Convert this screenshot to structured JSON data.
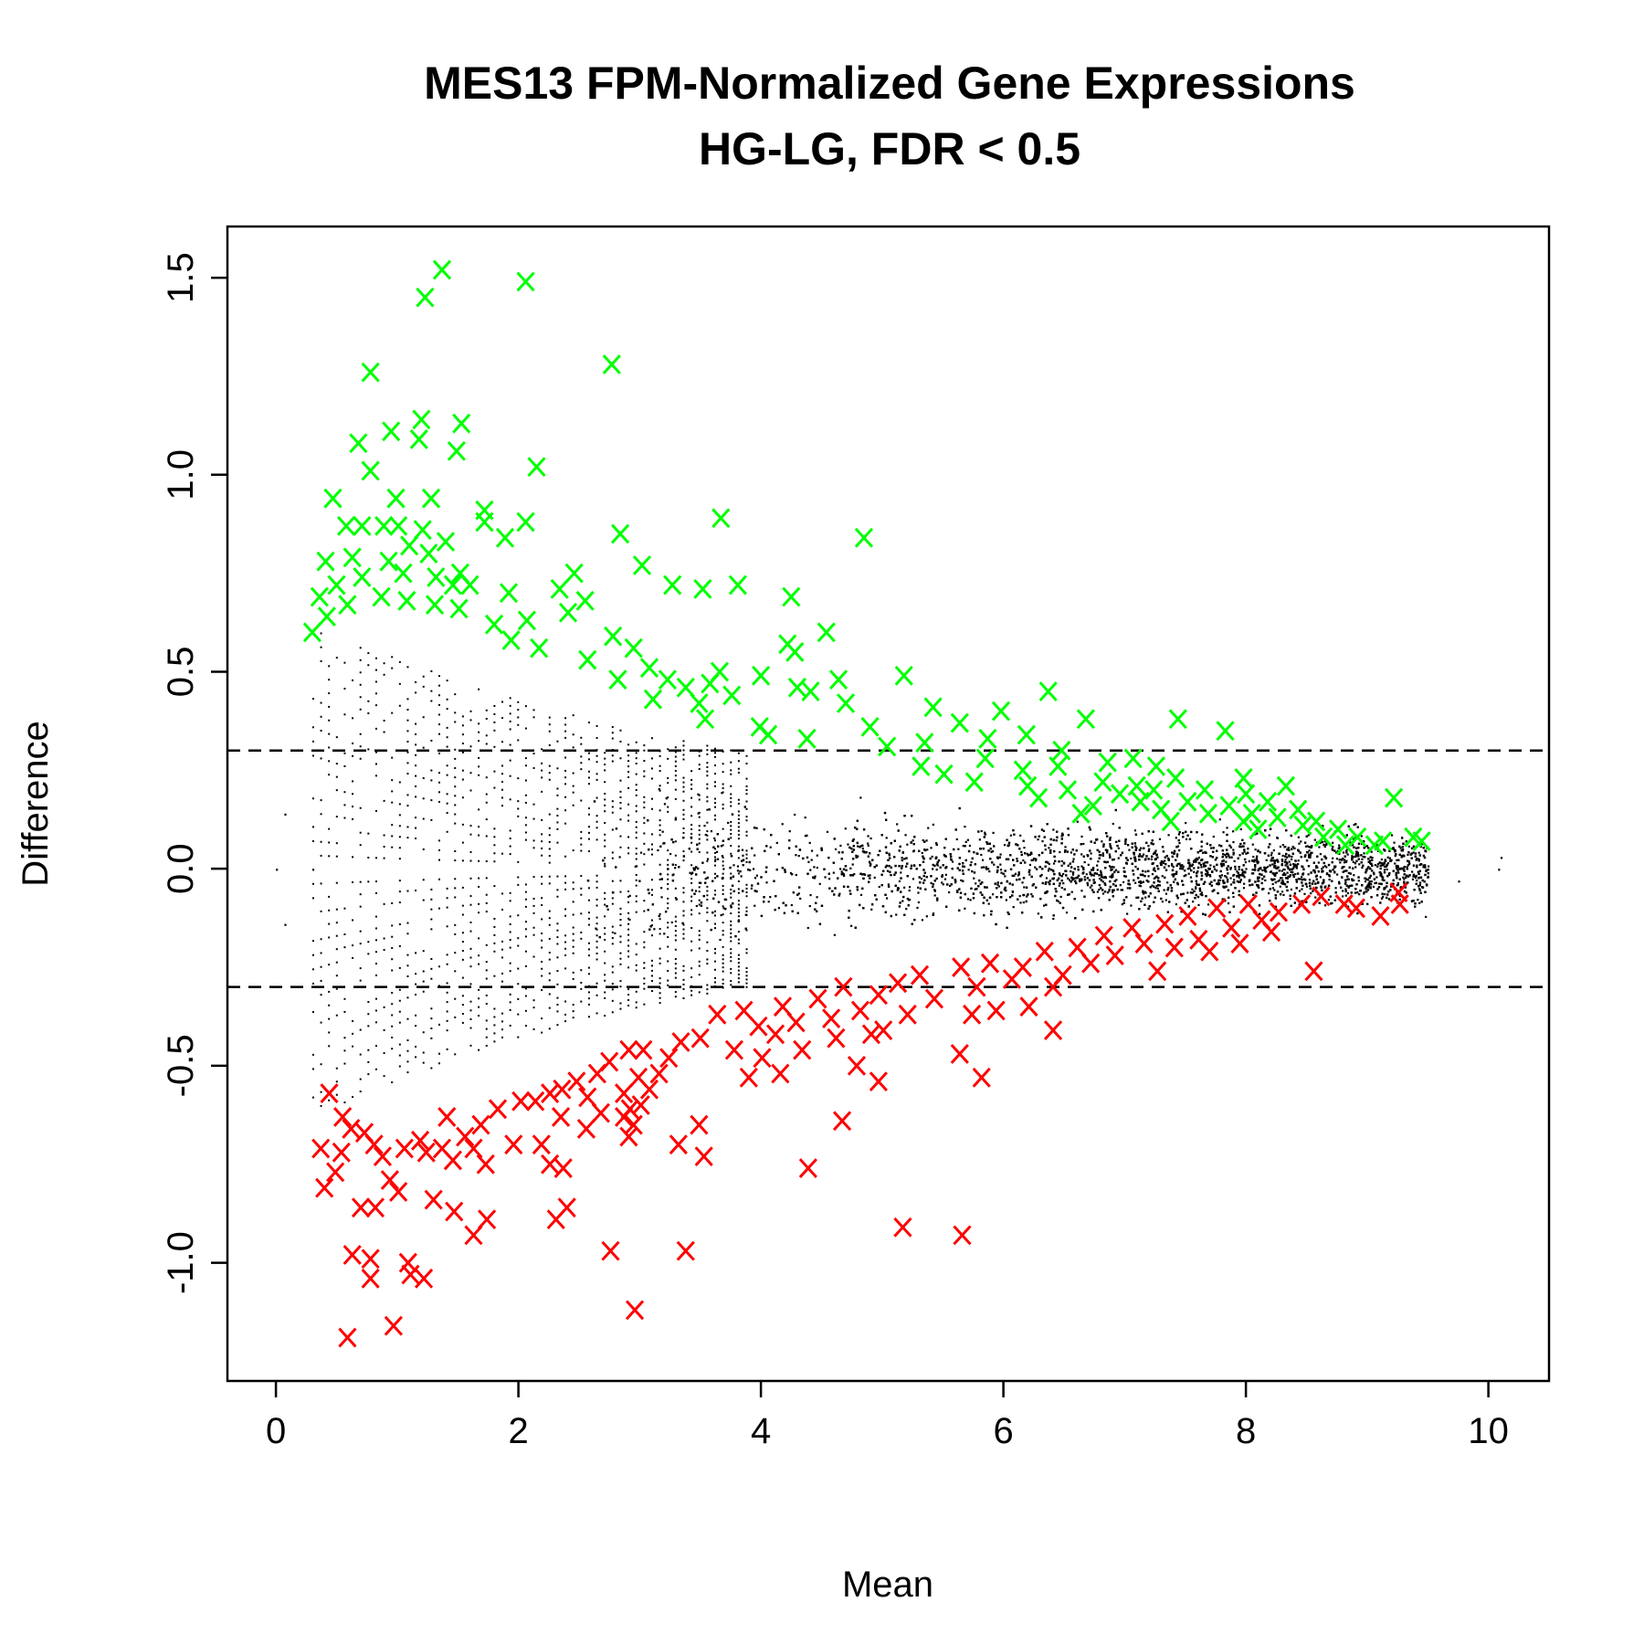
{
  "chart_data": {
    "type": "scatter",
    "title": [
      "MES13 FPM-Normalized Gene Expressions",
      "HG-LG, FDR < 0.5"
    ],
    "xlabel": "Mean",
    "ylabel": "Difference",
    "xlim": [
      -0.4,
      10.5
    ],
    "ylim": [
      -1.3,
      1.63
    ],
    "x_ticks": [
      0,
      2,
      4,
      6,
      8,
      10
    ],
    "y_ticks": [
      -1.0,
      -0.5,
      0.0,
      0.5,
      1.0,
      1.5
    ],
    "x_tick_labels": [
      "0",
      "2",
      "4",
      "6",
      "8",
      "10"
    ],
    "y_tick_labels": [
      "-1.0",
      "-0.5",
      "0.0",
      "0.5",
      "1.0",
      "1.5"
    ],
    "reference_lines": [
      0.3,
      -0.3
    ],
    "reference_line_style": "dashed",
    "grid": false,
    "legend": "none",
    "colors": {
      "up": "#00ff00",
      "down": "#ff0000",
      "background": "#000000"
    },
    "series": [
      {
        "marker": "x",
        "color": "#00ff00",
        "points": [
          [
            1.37,
            1.52
          ],
          [
            2.06,
            1.49
          ],
          [
            1.23,
            1.45
          ],
          [
            2.77,
            1.28
          ],
          [
            0.78,
            1.26
          ],
          [
            1.2,
            1.14
          ],
          [
            0.95,
            1.11
          ],
          [
            1.53,
            1.13
          ],
          [
            0.68,
            1.08
          ],
          [
            1.18,
            1.09
          ],
          [
            1.49,
            1.06
          ],
          [
            2.15,
            1.02
          ],
          [
            0.78,
            1.01
          ],
          [
            0.99,
            0.94
          ],
          [
            1.28,
            0.94
          ],
          [
            0.47,
            0.94
          ],
          [
            1.72,
            0.91
          ],
          [
            3.67,
            0.89
          ],
          [
            1.72,
            0.88
          ],
          [
            2.06,
            0.88
          ],
          [
            0.58,
            0.87
          ],
          [
            0.71,
            0.87
          ],
          [
            0.89,
            0.87
          ],
          [
            1.01,
            0.87
          ],
          [
            1.21,
            0.86
          ],
          [
            2.84,
            0.85
          ],
          [
            4.85,
            0.84
          ],
          [
            1.4,
            0.83
          ],
          [
            1.89,
            0.84
          ],
          [
            1.1,
            0.82
          ],
          [
            1.26,
            0.8
          ],
          [
            0.41,
            0.78
          ],
          [
            0.63,
            0.79
          ],
          [
            0.93,
            0.78
          ],
          [
            1.05,
            0.75
          ],
          [
            1.32,
            0.74
          ],
          [
            3.02,
            0.77
          ],
          [
            1.52,
            0.75
          ],
          [
            0.5,
            0.72
          ],
          [
            0.71,
            0.74
          ],
          [
            1.46,
            0.72
          ],
          [
            3.27,
            0.72
          ],
          [
            3.52,
            0.71
          ],
          [
            2.46,
            0.75
          ],
          [
            3.81,
            0.72
          ],
          [
            1.6,
            0.72
          ],
          [
            2.34,
            0.71
          ],
          [
            0.36,
            0.69
          ],
          [
            0.87,
            0.69
          ],
          [
            1.08,
            0.68
          ],
          [
            1.31,
            0.67
          ],
          [
            1.92,
            0.7
          ],
          [
            2.55,
            0.68
          ],
          [
            4.25,
            0.69
          ],
          [
            0.59,
            0.67
          ],
          [
            1.51,
            0.66
          ],
          [
            2.41,
            0.65
          ],
          [
            0.42,
            0.64
          ],
          [
            1.8,
            0.62
          ],
          [
            2.07,
            0.63
          ],
          [
            4.54,
            0.6
          ],
          [
            0.3,
            0.6
          ],
          [
            1.94,
            0.58
          ],
          [
            2.78,
            0.59
          ],
          [
            4.22,
            0.57
          ],
          [
            2.17,
            0.56
          ],
          [
            2.95,
            0.56
          ],
          [
            4.28,
            0.55
          ],
          [
            2.57,
            0.53
          ],
          [
            3.08,
            0.51
          ],
          [
            5.18,
            0.49
          ],
          [
            3.66,
            0.5
          ],
          [
            4.64,
            0.48
          ],
          [
            3.23,
            0.48
          ],
          [
            4.0,
            0.49
          ],
          [
            3.58,
            0.47
          ],
          [
            4.3,
            0.46
          ],
          [
            4.41,
            0.45
          ],
          [
            3.76,
            0.44
          ],
          [
            6.37,
            0.45
          ],
          [
            2.82,
            0.48
          ],
          [
            3.38,
            0.46
          ],
          [
            3.11,
            0.43
          ],
          [
            3.49,
            0.42
          ],
          [
            4.7,
            0.42
          ],
          [
            5.42,
            0.41
          ],
          [
            3.54,
            0.38
          ],
          [
            3.99,
            0.36
          ],
          [
            4.9,
            0.36
          ],
          [
            4.06,
            0.34
          ],
          [
            5.98,
            0.4
          ],
          [
            6.68,
            0.38
          ],
          [
            7.44,
            0.38
          ],
          [
            7.83,
            0.35
          ],
          [
            4.38,
            0.33
          ],
          [
            5.64,
            0.37
          ],
          [
            5.87,
            0.33
          ],
          [
            6.19,
            0.34
          ],
          [
            5.04,
            0.31
          ],
          [
            5.35,
            0.32
          ],
          [
            6.48,
            0.3
          ],
          [
            7.07,
            0.28
          ],
          [
            6.86,
            0.27
          ],
          [
            6.45,
            0.26
          ],
          [
            5.32,
            0.26
          ],
          [
            5.85,
            0.28
          ],
          [
            6.16,
            0.25
          ],
          [
            7.26,
            0.26
          ],
          [
            7.98,
            0.23
          ],
          [
            7.42,
            0.23
          ],
          [
            6.82,
            0.22
          ],
          [
            7.1,
            0.21
          ],
          [
            6.2,
            0.21
          ],
          [
            6.53,
            0.2
          ],
          [
            5.76,
            0.22
          ],
          [
            5.51,
            0.24
          ],
          [
            6.96,
            0.19
          ],
          [
            7.24,
            0.2
          ],
          [
            7.66,
            0.2
          ],
          [
            8.0,
            0.19
          ],
          [
            8.33,
            0.21
          ],
          [
            7.13,
            0.17
          ],
          [
            6.74,
            0.16
          ],
          [
            6.29,
            0.18
          ],
          [
            7.52,
            0.17
          ],
          [
            7.86,
            0.16
          ],
          [
            8.18,
            0.17
          ],
          [
            6.64,
            0.14
          ],
          [
            7.3,
            0.15
          ],
          [
            7.69,
            0.14
          ],
          [
            8.05,
            0.14
          ],
          [
            8.43,
            0.15
          ],
          [
            7.38,
            0.12
          ],
          [
            7.98,
            0.12
          ],
          [
            8.26,
            0.13
          ],
          [
            8.58,
            0.12
          ],
          [
            9.22,
            0.18
          ],
          [
            8.1,
            0.1
          ],
          [
            8.47,
            0.11
          ],
          [
            8.76,
            0.1
          ],
          [
            8.64,
            0.08
          ],
          [
            8.92,
            0.08
          ],
          [
            9.13,
            0.07
          ],
          [
            9.38,
            0.08
          ],
          [
            9.45,
            0.07
          ],
          [
            9.06,
            0.06
          ],
          [
            8.82,
            0.06
          ]
        ]
      },
      {
        "marker": "x",
        "color": "#ff0000",
        "points": [
          [
            9.26,
            -0.06
          ],
          [
            9.27,
            -0.09
          ],
          [
            9.11,
            -0.12
          ],
          [
            8.81,
            -0.09
          ],
          [
            8.91,
            -0.1
          ],
          [
            8.62,
            -0.07
          ],
          [
            8.46,
            -0.09
          ],
          [
            8.27,
            -0.11
          ],
          [
            8.02,
            -0.09
          ],
          [
            8.13,
            -0.13
          ],
          [
            7.76,
            -0.1
          ],
          [
            7.52,
            -0.12
          ],
          [
            7.88,
            -0.15
          ],
          [
            8.21,
            -0.16
          ],
          [
            7.33,
            -0.14
          ],
          [
            7.06,
            -0.15
          ],
          [
            7.61,
            -0.18
          ],
          [
            7.95,
            -0.19
          ],
          [
            6.83,
            -0.17
          ],
          [
            7.41,
            -0.2
          ],
          [
            7.16,
            -0.19
          ],
          [
            6.61,
            -0.2
          ],
          [
            6.92,
            -0.22
          ],
          [
            7.7,
            -0.21
          ],
          [
            6.34,
            -0.21
          ],
          [
            6.72,
            -0.24
          ],
          [
            7.27,
            -0.26
          ],
          [
            8.56,
            -0.26
          ],
          [
            6.16,
            -0.25
          ],
          [
            6.49,
            -0.27
          ],
          [
            5.89,
            -0.24
          ],
          [
            6.07,
            -0.28
          ],
          [
            5.65,
            -0.25
          ],
          [
            5.31,
            -0.27
          ],
          [
            6.41,
            -0.3
          ],
          [
            5.78,
            -0.3
          ],
          [
            5.13,
            -0.29
          ],
          [
            5.43,
            -0.33
          ],
          [
            6.21,
            -0.35
          ],
          [
            4.97,
            -0.32
          ],
          [
            4.68,
            -0.3
          ],
          [
            5.94,
            -0.36
          ],
          [
            4.82,
            -0.36
          ],
          [
            4.47,
            -0.33
          ],
          [
            5.21,
            -0.37
          ],
          [
            6.41,
            -0.41
          ],
          [
            4.18,
            -0.35
          ],
          [
            4.58,
            -0.38
          ],
          [
            5.74,
            -0.37
          ],
          [
            5.01,
            -0.41
          ],
          [
            4.91,
            -0.42
          ],
          [
            3.86,
            -0.36
          ],
          [
            4.29,
            -0.39
          ],
          [
            4.62,
            -0.43
          ],
          [
            3.98,
            -0.4
          ],
          [
            3.64,
            -0.37
          ],
          [
            4.12,
            -0.42
          ],
          [
            3.5,
            -0.43
          ],
          [
            4.34,
            -0.46
          ],
          [
            3.78,
            -0.46
          ],
          [
            3.34,
            -0.44
          ],
          [
            5.64,
            -0.47
          ],
          [
            4.01,
            -0.48
          ],
          [
            3.24,
            -0.48
          ],
          [
            3.03,
            -0.46
          ],
          [
            2.91,
            -0.46
          ],
          [
            4.79,
            -0.5
          ],
          [
            5.82,
            -0.53
          ],
          [
            4.97,
            -0.54
          ],
          [
            3.9,
            -0.53
          ],
          [
            3.16,
            -0.52
          ],
          [
            2.75,
            -0.49
          ],
          [
            4.16,
            -0.52
          ],
          [
            2.99,
            -0.53
          ],
          [
            2.65,
            -0.52
          ],
          [
            2.48,
            -0.54
          ],
          [
            2.36,
            -0.56
          ],
          [
            3.08,
            -0.56
          ],
          [
            2.57,
            -0.58
          ],
          [
            2.26,
            -0.57
          ],
          [
            2.87,
            -0.57
          ],
          [
            2.92,
            -0.61
          ],
          [
            2.14,
            -0.59
          ],
          [
            2.02,
            -0.59
          ],
          [
            2.68,
            -0.62
          ],
          [
            0.44,
            -0.57
          ],
          [
            1.83,
            -0.61
          ],
          [
            2.87,
            -0.63
          ],
          [
            3.01,
            -0.6
          ],
          [
            0.55,
            -0.63
          ],
          [
            1.41,
            -0.63
          ],
          [
            4.67,
            -0.64
          ],
          [
            1.69,
            -0.65
          ],
          [
            2.35,
            -0.63
          ],
          [
            0.62,
            -0.66
          ],
          [
            2.56,
            -0.66
          ],
          [
            3.49,
            -0.65
          ],
          [
            2.95,
            -0.65
          ],
          [
            0.73,
            -0.67
          ],
          [
            1.19,
            -0.69
          ],
          [
            1.56,
            -0.68
          ],
          [
            0.81,
            -0.7
          ],
          [
            1.06,
            -0.71
          ],
          [
            3.32,
            -0.7
          ],
          [
            2.19,
            -0.7
          ],
          [
            1.37,
            -0.71
          ],
          [
            0.37,
            -0.71
          ],
          [
            0.54,
            -0.72
          ],
          [
            1.96,
            -0.7
          ],
          [
            2.91,
            -0.68
          ],
          [
            1.24,
            -0.72
          ],
          [
            1.63,
            -0.71
          ],
          [
            3.53,
            -0.73
          ],
          [
            0.88,
            -0.73
          ],
          [
            1.46,
            -0.74
          ],
          [
            0.49,
            -0.77
          ],
          [
            1.73,
            -0.75
          ],
          [
            2.26,
            -0.75
          ],
          [
            2.37,
            -0.76
          ],
          [
            4.39,
            -0.76
          ],
          [
            0.94,
            -0.79
          ],
          [
            0.4,
            -0.81
          ],
          [
            1.01,
            -0.82
          ],
          [
            0.7,
            -0.86
          ],
          [
            0.82,
            -0.86
          ],
          [
            1.3,
            -0.84
          ],
          [
            1.47,
            -0.87
          ],
          [
            2.4,
            -0.86
          ],
          [
            1.74,
            -0.89
          ],
          [
            2.31,
            -0.89
          ],
          [
            1.63,
            -0.93
          ],
          [
            5.17,
            -0.91
          ],
          [
            5.66,
            -0.93
          ],
          [
            2.76,
            -0.97
          ],
          [
            3.38,
            -0.97
          ],
          [
            0.63,
            -0.98
          ],
          [
            0.78,
            -0.99
          ],
          [
            1.09,
            -1.0
          ],
          [
            1.11,
            -1.03
          ],
          [
            0.78,
            -1.04
          ],
          [
            1.22,
            -1.04
          ],
          [
            2.96,
            -1.12
          ],
          [
            0.97,
            -1.16
          ],
          [
            0.59,
            -1.19
          ]
        ]
      }
    ]
  }
}
